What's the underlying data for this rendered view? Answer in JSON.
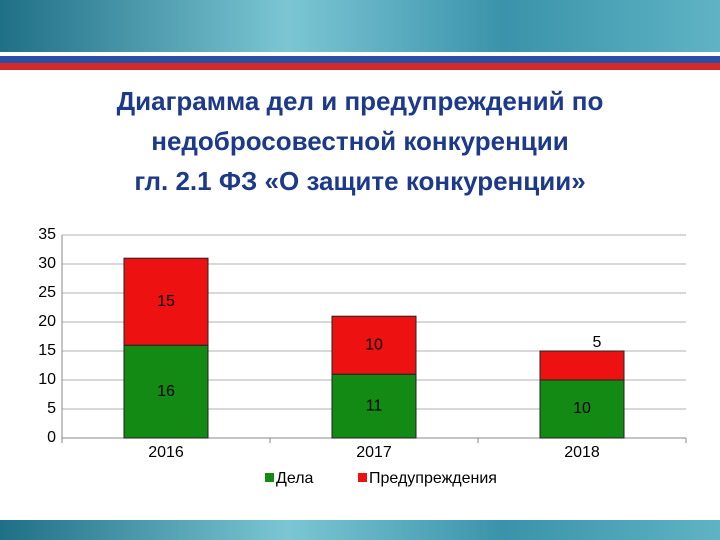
{
  "chart_data": {
    "type": "stacked_bar",
    "title_lines": [
      "Диаграмма дел и предупреждений по",
      "недобросовестной конкуренции",
      "гл. 2.1 ФЗ «О защите конкуренции»"
    ],
    "categories": [
      "2016",
      "2017",
      "2018"
    ],
    "series": [
      {
        "name": "Дела",
        "color": "#138a13",
        "values": [
          16,
          11,
          10
        ]
      },
      {
        "name": "Предупреждения",
        "color": "#ee1111",
        "values": [
          15,
          10,
          5
        ]
      }
    ],
    "ylim": [
      0,
      35
    ],
    "yticks": [
      0,
      5,
      10,
      15,
      20,
      25,
      30,
      35
    ],
    "grid": true,
    "legend": "bottom"
  }
}
